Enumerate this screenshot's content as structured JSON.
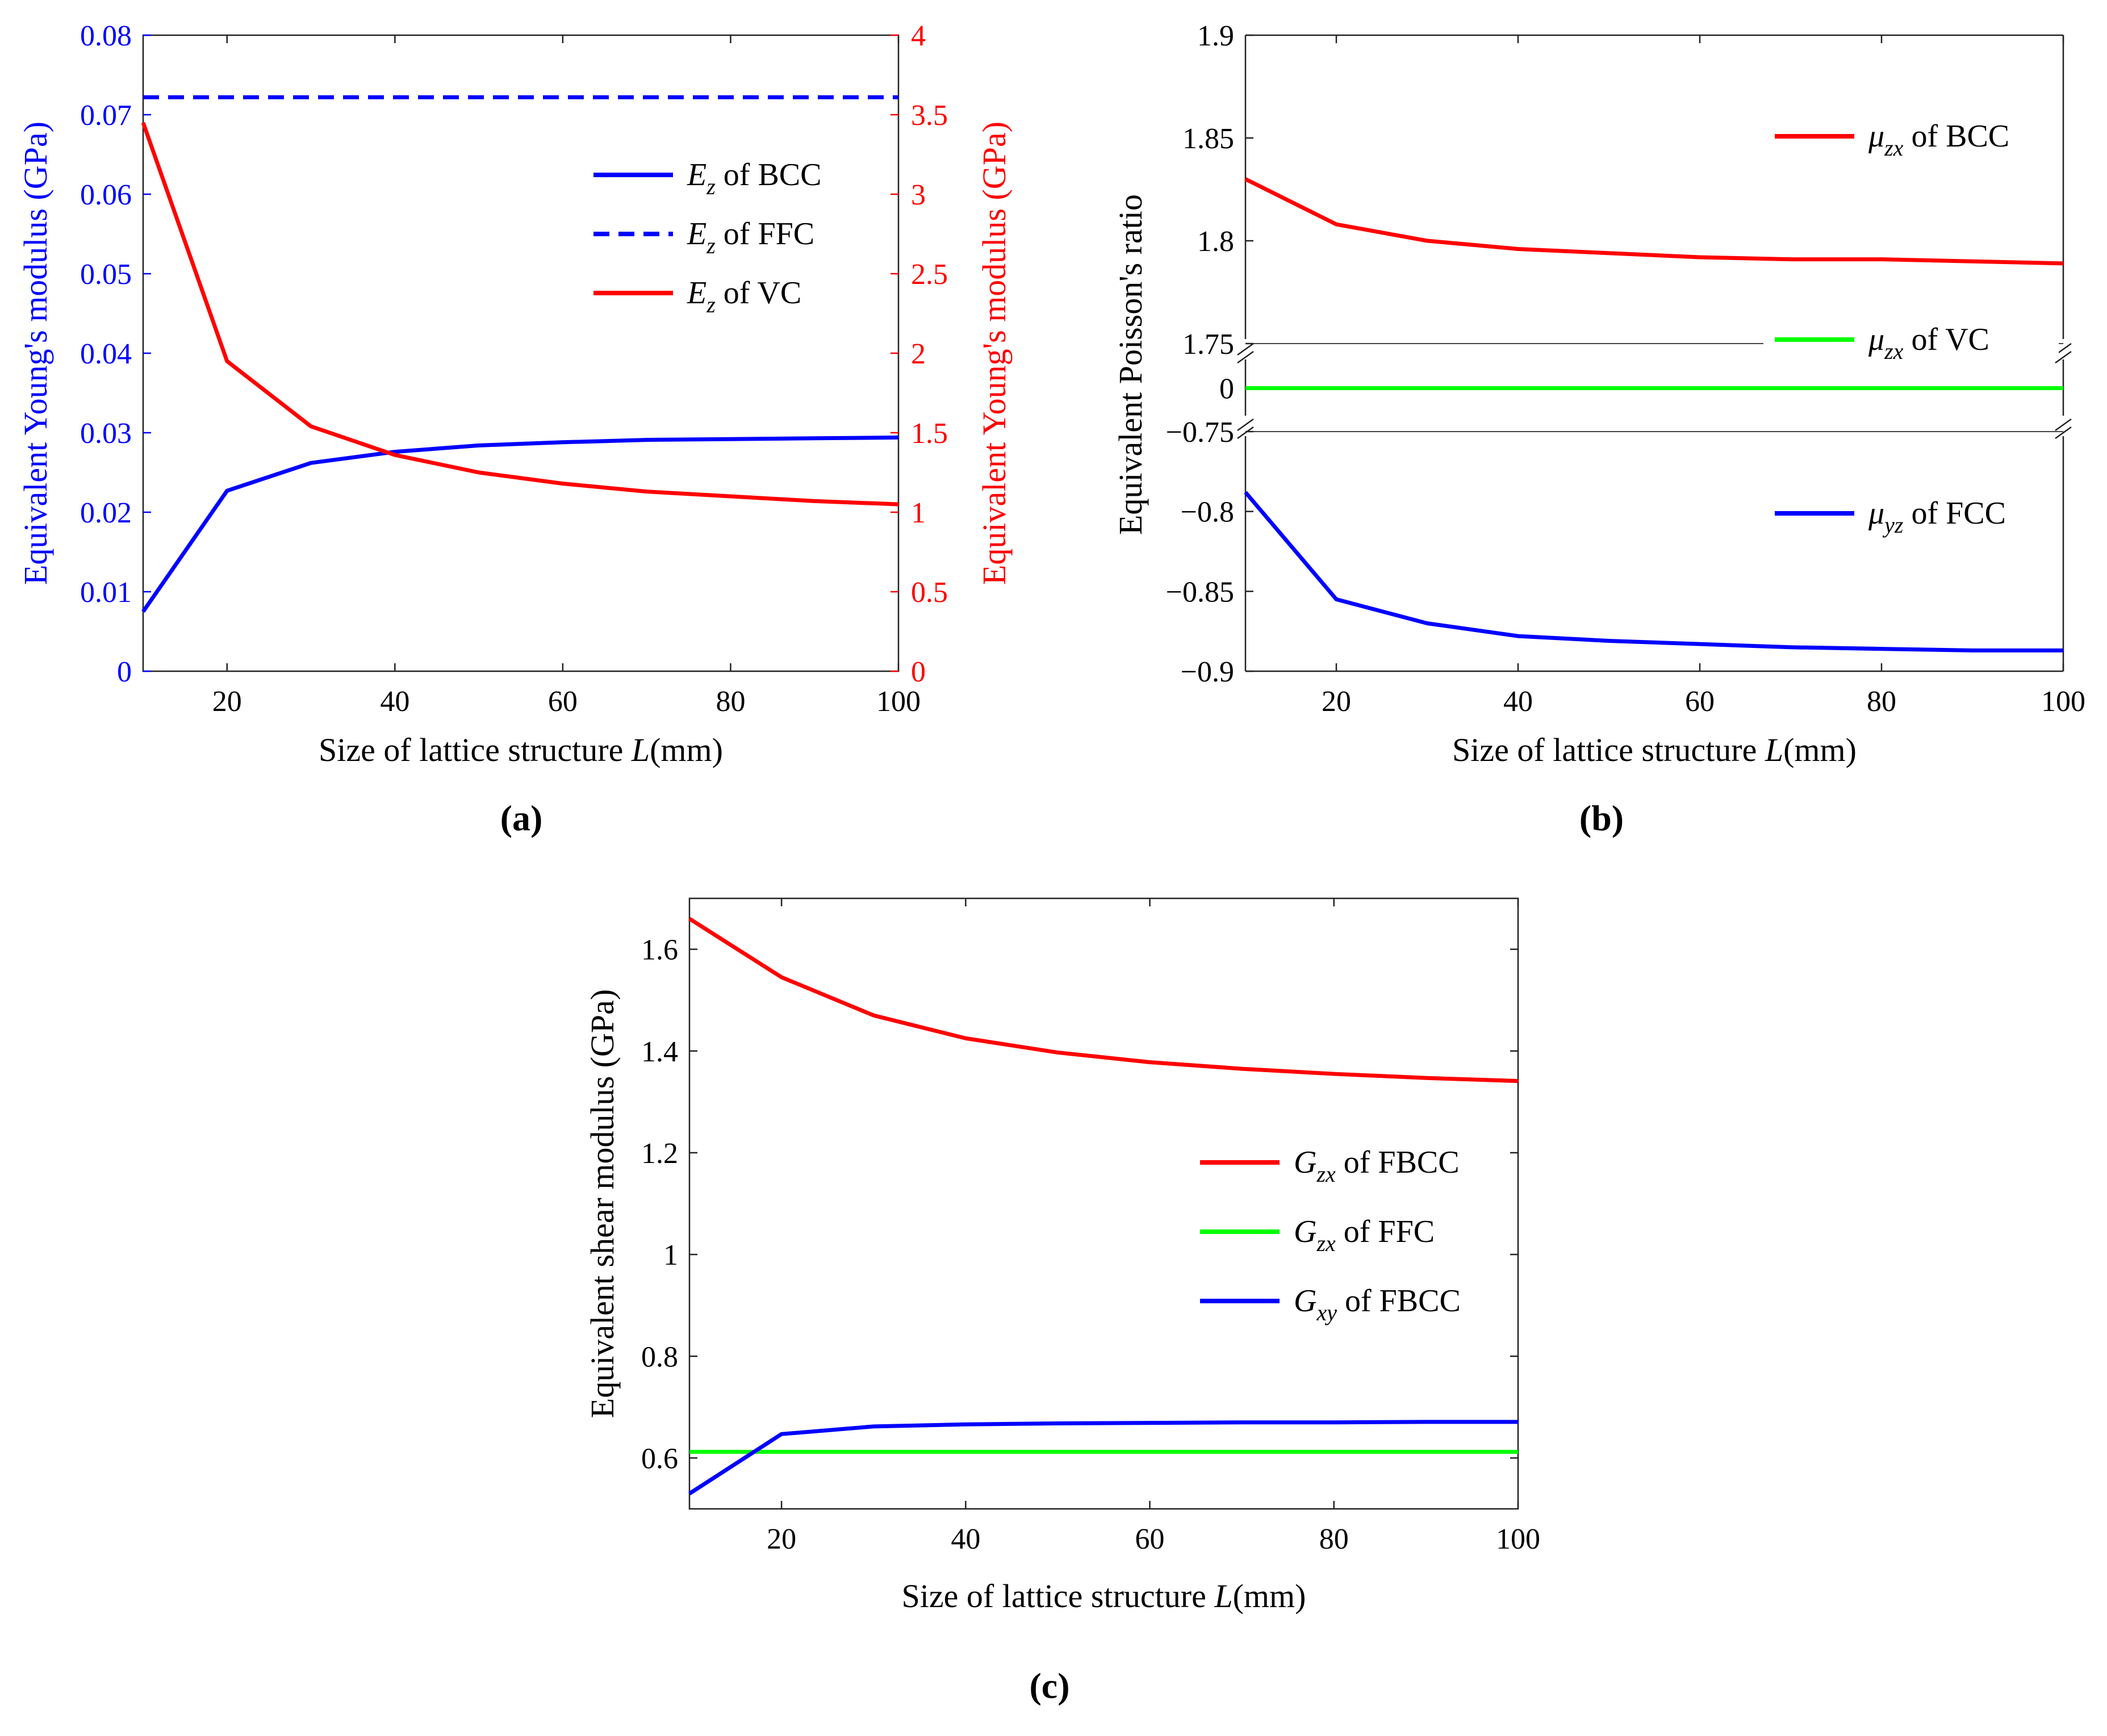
{
  "chart_data": [
    {
      "panel": "(a)",
      "type": "line",
      "xlabel": "Size of lattice structure L(mm)",
      "ylabel_left": "Equivalent Young's modulus (GPa)",
      "ylabel_right": "Equivalent Young's modulus (GPa)",
      "xlim": [
        10,
        100
      ],
      "ylim_left": [
        0,
        0.08
      ],
      "ylim_right": [
        0,
        4
      ],
      "xticks": [
        "20",
        "40",
        "60",
        "80",
        "100"
      ],
      "yticks_left": [
        "0",
        "0.01",
        "0.02",
        "0.03",
        "0.04",
        "0.05",
        "0.06",
        "0.07",
        "0.08"
      ],
      "yticks_right": [
        "0",
        "0.5",
        "1",
        "1.5",
        "2",
        "2.5",
        "3",
        "3.5",
        "4"
      ],
      "legend_position": "right-middle",
      "series": [
        {
          "name": "E_z of BCC",
          "symbol": "E",
          "sub": "z",
          "suffix": " of  BCC",
          "axis": "left",
          "color": "#0000ff",
          "style": "solid",
          "x": [
            10,
            20,
            30,
            40,
            50,
            60,
            70,
            80,
            90,
            100
          ],
          "y": [
            0.0075,
            0.0227,
            0.0262,
            0.0276,
            0.0284,
            0.0288,
            0.0291,
            0.0292,
            0.0293,
            0.0294
          ]
        },
        {
          "name": "E_z of FFC",
          "symbol": "E",
          "sub": "z",
          "suffix": " of  FFC",
          "axis": "left",
          "color": "#0000ff",
          "style": "dashed",
          "x": [
            10,
            100
          ],
          "y": [
            0.0722,
            0.0722
          ]
        },
        {
          "name": "E_z of VC",
          "symbol": "E",
          "sub": "z",
          "suffix": " of  VC",
          "axis": "right",
          "color": "#ff0000",
          "style": "solid",
          "x": [
            10,
            20,
            30,
            40,
            50,
            60,
            70,
            80,
            90,
            100
          ],
          "y": [
            3.45,
            1.95,
            1.54,
            1.36,
            1.25,
            1.18,
            1.13,
            1.1,
            1.07,
            1.05
          ]
        }
      ]
    },
    {
      "panel": "(b)",
      "type": "line",
      "xlabel": "Size of lattice structure L(mm)",
      "ylabel": "Equivalent Poisson's ratio",
      "xlim": [
        10,
        100
      ],
      "broken_axis": true,
      "segments": [
        {
          "name": "upper",
          "ylim": [
            1.75,
            1.9
          ],
          "yticks": [
            "1.75",
            "1.8",
            "1.85",
            "1.9"
          ]
        },
        {
          "name": "middle",
          "yticks": [
            "0"
          ]
        },
        {
          "name": "lower",
          "ylim": [
            -0.9,
            -0.75
          ],
          "yticks": [
            "-0.75",
            "-0.8",
            "-0.85",
            "-0.9"
          ]
        }
      ],
      "xticks": [
        "20",
        "40",
        "60",
        "80",
        "100"
      ],
      "series": [
        {
          "name": "μ_zx of BCC",
          "symbol": "μ",
          "sub": "zx",
          "suffix": " of  BCC",
          "color": "#ff0000",
          "segment": "upper",
          "x": [
            10,
            20,
            30,
            40,
            50,
            60,
            70,
            80,
            90,
            100
          ],
          "y": [
            1.83,
            1.808,
            1.8,
            1.796,
            1.794,
            1.792,
            1.791,
            1.791,
            1.79,
            1.789
          ]
        },
        {
          "name": "μ_zx of VC",
          "symbol": "μ",
          "sub": "zx",
          "suffix": " of   VC",
          "color": "#00ff00",
          "segment": "middle",
          "x": [
            10,
            100
          ],
          "y": [
            0,
            0
          ]
        },
        {
          "name": "μ_yz of FCC",
          "symbol": "μ",
          "sub": "yz",
          "suffix": " of  FCC",
          "color": "#0000ff",
          "segment": "lower",
          "x": [
            10,
            20,
            30,
            40,
            50,
            60,
            70,
            80,
            90,
            100
          ],
          "y": [
            -0.788,
            -0.855,
            -0.87,
            -0.878,
            -0.881,
            -0.883,
            -0.885,
            -0.886,
            -0.887,
            -0.887
          ]
        }
      ]
    },
    {
      "panel": "(c)",
      "type": "line",
      "xlabel": "Size of lattice structure L(mm)",
      "ylabel": "Equivalent shear modulus (GPa)",
      "xlim": [
        10,
        100
      ],
      "ylim": [
        0.5,
        1.7
      ],
      "xticks": [
        "20",
        "40",
        "60",
        "80",
        "100"
      ],
      "yticks": [
        "0.6",
        "0.8",
        "1",
        "1.2",
        "1.4",
        "1.6"
      ],
      "legend_position": "right-middle",
      "series": [
        {
          "name": "G_zx of FBCC",
          "symbol": "G",
          "sub": "zx",
          "suffix": " of  FBCC",
          "color": "#ff0000",
          "x": [
            10,
            20,
            30,
            40,
            50,
            60,
            70,
            80,
            90,
            100
          ],
          "y": [
            1.66,
            1.545,
            1.47,
            1.425,
            1.397,
            1.378,
            1.365,
            1.355,
            1.347,
            1.341
          ]
        },
        {
          "name": "G_zx of FFC",
          "symbol": "G",
          "sub": "zx",
          "suffix": " of  FFC",
          "color": "#00ff00",
          "x": [
            10,
            100
          ],
          "y": [
            0.612,
            0.612
          ]
        },
        {
          "name": "G_xy of FBCC",
          "symbol": "G",
          "sub": "xy",
          "suffix": " of  FBCC",
          "color": "#0000ff",
          "x": [
            10,
            20,
            30,
            40,
            50,
            60,
            70,
            80,
            90,
            100
          ],
          "y": [
            0.53,
            0.647,
            0.662,
            0.666,
            0.668,
            0.669,
            0.67,
            0.67,
            0.671,
            0.671
          ]
        }
      ]
    }
  ]
}
